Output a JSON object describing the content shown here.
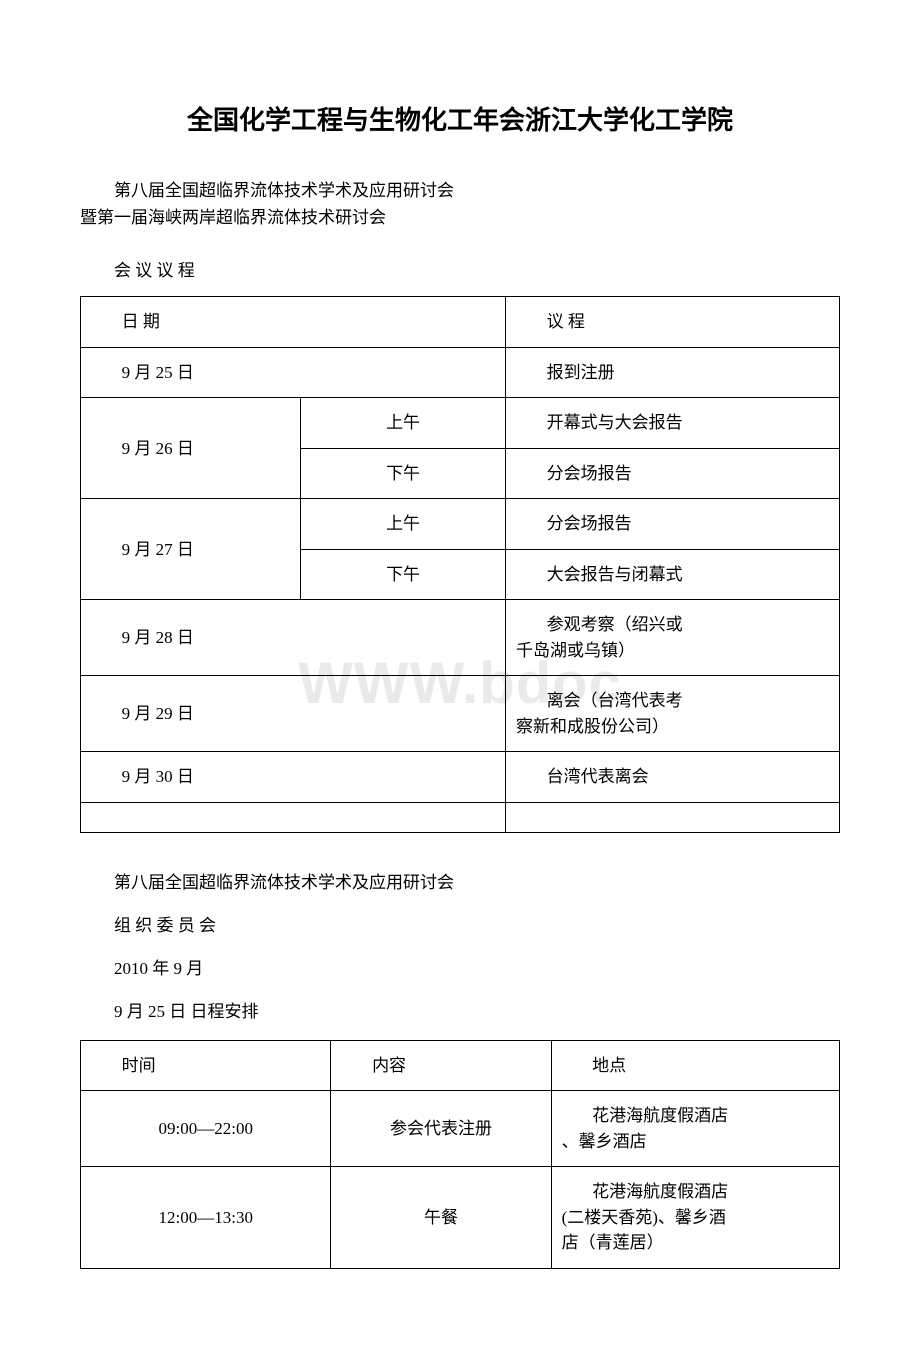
{
  "title": "全国化学工程与生物化工年会浙江大学化工学院",
  "subtitle_line1": "第八届全国超临界流体技术学术及应用研讨会",
  "subtitle_line2": "暨第一届海峡两岸超临界流体技术研讨会",
  "agenda_label": "会 议 议 程",
  "watermark": "WWW.bdoc",
  "table1": {
    "header": {
      "date": "日 期",
      "agenda": "议 程"
    },
    "rows": [
      {
        "date": "9 月 25 日",
        "agenda": "报到注册"
      },
      {
        "date": "9 月 26 日",
        "am": "上午",
        "am_agenda": "开幕式与大会报告",
        "pm": "下午",
        "pm_agenda": "分会场报告"
      },
      {
        "date": "9 月 27 日",
        "am": "上午",
        "am_agenda": "分会场报告",
        "pm": "下午",
        "pm_agenda": "大会报告与闭幕式"
      },
      {
        "date": "9 月 28 日",
        "agenda_l1": "参观考察（绍兴或",
        "agenda_l2": "千岛湖或乌镇）"
      },
      {
        "date": "9 月 29 日",
        "agenda_l1": "离会（台湾代表考",
        "agenda_l2": "察新和成股份公司）"
      },
      {
        "date": "9 月 30 日",
        "agenda": "台湾代表离会"
      }
    ]
  },
  "body": {
    "line1": "第八届全国超临界流体技术学术及应用研讨会",
    "line2": "组 织 委 员 会",
    "line3": "2010 年 9 月",
    "line4": "9 月 25 日 日程安排"
  },
  "table2": {
    "header": {
      "time": "时间",
      "content": "内容",
      "location": "地点"
    },
    "rows": [
      {
        "time": "09:00—22:00",
        "content": "参会代表注册",
        "loc_l1": "花港海航度假酒店",
        "loc_l2": "、馨乡酒店"
      },
      {
        "time": "12:00—13:30",
        "content": "午餐",
        "loc_l1": "花港海航度假酒店",
        "loc_l2": "(二楼天香苑)、馨乡酒",
        "loc_l3": "店（青莲居）"
      }
    ]
  }
}
